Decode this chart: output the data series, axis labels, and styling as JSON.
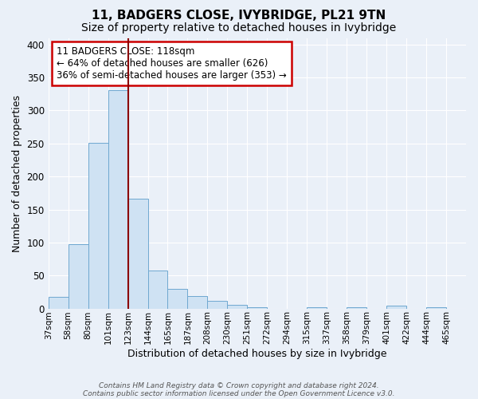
{
  "title": "11, BADGERS CLOSE, IVYBRIDGE, PL21 9TN",
  "subtitle": "Size of property relative to detached houses in Ivybridge",
  "xlabel": "Distribution of detached houses by size in Ivybridge",
  "ylabel": "Number of detached properties",
  "bin_labels": [
    "37sqm",
    "58sqm",
    "80sqm",
    "101sqm",
    "123sqm",
    "144sqm",
    "165sqm",
    "187sqm",
    "208sqm",
    "230sqm",
    "251sqm",
    "272sqm",
    "294sqm",
    "315sqm",
    "337sqm",
    "358sqm",
    "379sqm",
    "401sqm",
    "422sqm",
    "444sqm",
    "465sqm"
  ],
  "bar_heights": [
    17,
    97,
    251,
    331,
    166,
    57,
    30,
    19,
    12,
    5,
    2,
    0,
    0,
    2,
    0,
    2,
    0,
    4,
    0,
    2,
    0
  ],
  "bar_facecolor": "#cfe2f3",
  "bar_edgecolor": "#6fa8d0",
  "property_bin_index": 4,
  "vline_color": "#8b0000",
  "annotation_text": "11 BADGERS CLOSE: 118sqm\n← 64% of detached houses are smaller (626)\n36% of semi-detached houses are larger (353) →",
  "annotation_box_edgecolor": "#cc0000",
  "annotation_box_facecolor": "#ffffff",
  "ylim": [
    0,
    410
  ],
  "yticks": [
    0,
    50,
    100,
    150,
    200,
    250,
    300,
    350,
    400
  ],
  "footer_line1": "Contains HM Land Registry data © Crown copyright and database right 2024.",
  "footer_line2": "Contains public sector information licensed under the Open Government Licence v3.0.",
  "background_color": "#eaf0f8",
  "plot_background_color": "#eaf0f8",
  "title_fontsize": 11,
  "subtitle_fontsize": 10,
  "annotation_fontsize": 8.5,
  "ylabel_fontsize": 9,
  "xlabel_fontsize": 9
}
